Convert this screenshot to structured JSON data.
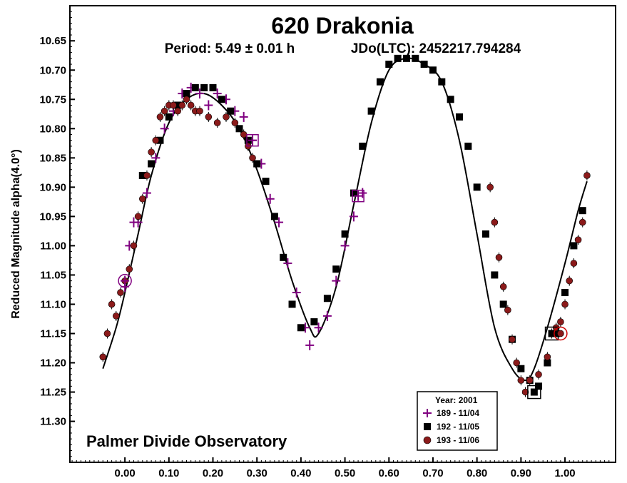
{
  "chart_data": {
    "type": "scatter",
    "title": "620 Drakonia",
    "subtitle_period": "Period: 5.49 ± 0.01 h",
    "subtitle_epoch": "JDo(LTC): 2452217.794284",
    "ylabel": "Reduced Magnitude alpha(4.0°)",
    "xlabel": "",
    "xlim": [
      -0.125,
      1.115
    ],
    "ylim": [
      11.37,
      10.59
    ],
    "y_inverted": true,
    "grid": false,
    "x_ticks": [
      "0.00",
      "0.10",
      "0.20",
      "0.30",
      "0.40",
      "0.50",
      "0.60",
      "0.70",
      "0.80",
      "0.90",
      "1.00"
    ],
    "y_ticks": [
      "10.65",
      "10.70",
      "10.75",
      "10.80",
      "10.85",
      "10.90",
      "10.95",
      "11.00",
      "11.05",
      "11.10",
      "11.15",
      "11.20",
      "11.25",
      "11.30"
    ],
    "annotation": "Palmer Divide Observatory",
    "legend": {
      "title": "Year: 2001",
      "placement": "bottom-right",
      "entries": [
        "189 - 11/04",
        "192 - 11/05",
        "193 - 11/06"
      ]
    },
    "fit_curve": {
      "x": [
        -0.05,
        -0.02,
        0.0,
        0.03,
        0.06,
        0.1,
        0.14,
        0.18,
        0.22,
        0.26,
        0.3,
        0.34,
        0.38,
        0.42,
        0.44,
        0.48,
        0.52,
        0.56,
        0.6,
        0.64,
        0.68,
        0.72,
        0.76,
        0.8,
        0.84,
        0.88,
        0.91,
        0.93,
        0.96,
        1.0,
        1.03,
        1.05
      ],
      "y": [
        11.21,
        11.14,
        11.08,
        10.98,
        10.88,
        10.79,
        10.75,
        10.74,
        10.76,
        10.8,
        10.87,
        10.96,
        11.06,
        11.14,
        11.15,
        11.07,
        10.93,
        10.79,
        10.7,
        10.68,
        10.69,
        10.72,
        10.82,
        10.98,
        11.14,
        11.21,
        11.23,
        11.21,
        11.14,
        11.03,
        10.94,
        10.89
      ]
    },
    "series": [
      {
        "name": "189 - 11/04",
        "color": "#800080",
        "marker": "plus",
        "x": [
          0.0,
          0.01,
          0.02,
          0.03,
          0.05,
          0.07,
          0.09,
          0.11,
          0.13,
          0.15,
          0.17,
          0.19,
          0.21,
          0.23,
          0.25,
          0.27,
          0.29,
          0.31,
          0.33,
          0.35,
          0.37,
          0.39,
          0.41,
          0.42,
          0.44,
          0.46,
          0.48,
          0.5,
          0.52,
          0.54
        ],
        "y": [
          11.07,
          11.0,
          10.96,
          10.96,
          10.91,
          10.85,
          10.8,
          10.77,
          10.74,
          10.73,
          10.74,
          10.76,
          10.74,
          10.75,
          10.77,
          10.78,
          10.82,
          10.86,
          10.92,
          10.96,
          11.03,
          11.08,
          11.14,
          11.17,
          11.14,
          11.12,
          11.06,
          11.0,
          10.95,
          10.91
        ]
      },
      {
        "name": "192 - 11/05",
        "color": "#000000",
        "marker": "square",
        "x": [
          0.04,
          0.06,
          0.08,
          0.1,
          0.12,
          0.14,
          0.16,
          0.18,
          0.2,
          0.22,
          0.24,
          0.26,
          0.28,
          0.3,
          0.32,
          0.34,
          0.36,
          0.38,
          0.4,
          0.43,
          0.46,
          0.48,
          0.5,
          0.52,
          0.54,
          0.56,
          0.58,
          0.6,
          0.62,
          0.64,
          0.66,
          0.68,
          0.7,
          0.72,
          0.74,
          0.76,
          0.78,
          0.8,
          0.82,
          0.84,
          0.86,
          0.88,
          0.9,
          0.92,
          0.94,
          0.96,
          0.98,
          1.0,
          1.02,
          1.04
        ],
        "y": [
          10.88,
          10.86,
          10.82,
          10.78,
          10.76,
          10.74,
          10.73,
          10.73,
          10.73,
          10.75,
          10.77,
          10.8,
          10.82,
          10.86,
          10.89,
          10.95,
          11.02,
          11.1,
          11.14,
          11.13,
          11.09,
          11.04,
          10.98,
          10.91,
          10.83,
          10.77,
          10.72,
          10.69,
          10.68,
          10.68,
          10.68,
          10.69,
          10.7,
          10.72,
          10.75,
          10.78,
          10.83,
          10.9,
          10.98,
          11.05,
          11.1,
          11.16,
          11.21,
          11.23,
          11.24,
          11.2,
          11.15,
          11.08,
          11.0,
          10.94
        ]
      },
      {
        "name": "193 - 11/06",
        "color": "#8b1a1a",
        "marker": "circle",
        "x": [
          -0.05,
          -0.04,
          -0.03,
          -0.02,
          -0.01,
          0.0,
          0.01,
          0.02,
          0.03,
          0.04,
          0.05,
          0.06,
          0.07,
          0.08,
          0.09,
          0.1,
          0.11,
          0.12,
          0.13,
          0.14,
          0.15,
          0.16,
          0.17,
          0.19,
          0.21,
          0.23,
          0.25,
          0.27,
          0.28,
          0.29,
          0.83,
          0.84,
          0.85,
          0.86,
          0.87,
          0.88,
          0.89,
          0.9,
          0.91,
          0.92,
          0.94,
          0.96,
          0.97,
          0.98,
          0.99,
          1.0,
          1.01,
          1.02,
          1.03,
          1.04,
          1.05
        ],
        "y": [
          11.19,
          11.15,
          11.1,
          11.12,
          11.08,
          11.06,
          11.04,
          11.0,
          10.95,
          10.92,
          10.88,
          10.84,
          10.82,
          10.78,
          10.77,
          10.76,
          10.76,
          10.77,
          10.76,
          10.75,
          10.76,
          10.77,
          10.77,
          10.78,
          10.79,
          10.78,
          10.79,
          10.81,
          10.83,
          10.85,
          10.9,
          10.96,
          11.02,
          11.07,
          11.11,
          11.16,
          11.2,
          11.23,
          11.25,
          11.23,
          11.22,
          11.19,
          11.15,
          11.14,
          11.13,
          11.1,
          11.06,
          11.03,
          10.99,
          10.96,
          10.88
        ]
      }
    ],
    "highlighted_points": [
      {
        "series": "189 - 11/04",
        "x": 0.0,
        "y": 11.06
      },
      {
        "series": "189 - 11/04",
        "x": 0.29,
        "y": 10.82
      },
      {
        "series": "189 - 11/04",
        "x": 0.53,
        "y": 10.915
      },
      {
        "series": "192 - 11/05",
        "x": 0.93,
        "y": 11.25
      },
      {
        "series": "192 - 11/05",
        "x": 0.97,
        "y": 11.15
      },
      {
        "series": "193 - 11/06",
        "x": 0.99,
        "y": 11.15
      }
    ]
  }
}
